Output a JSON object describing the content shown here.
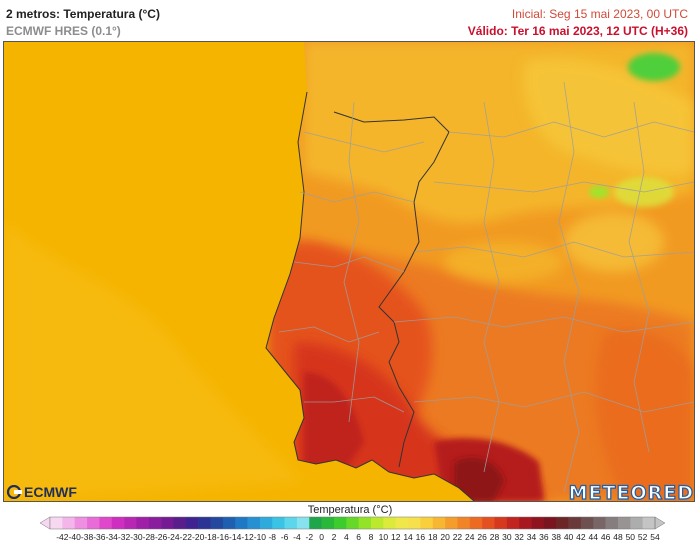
{
  "header": {
    "title": "2 metros: Temperatura (°C)",
    "model": "ECMWF HRES (0.1°)",
    "initial": "Inicial: Seg 15 mai 2023, 00 UTC",
    "valid": "Válido: Ter 16 mai 2023, 12 UTC (H+36)"
  },
  "logos": {
    "left": "ECMWF",
    "right": "METEORED"
  },
  "legend": {
    "title": "Temperatura (°C)",
    "labels": [
      "-42",
      "-40",
      "-38",
      "-36",
      "-34",
      "-32",
      "-30",
      "-28",
      "-26",
      "-24",
      "-22",
      "-20",
      "-18",
      "-16",
      "-14",
      "-12",
      "-10",
      "-8",
      "-6",
      "-4",
      "-2",
      "0",
      "2",
      "4",
      "6",
      "8",
      "10",
      "12",
      "14",
      "16",
      "18",
      "20",
      "22",
      "24",
      "26",
      "28",
      "30",
      "32",
      "34",
      "36",
      "38",
      "40",
      "42",
      "44",
      "46",
      "48",
      "50",
      "52",
      "54"
    ],
    "colors": [
      "#f7d8f0",
      "#f3b5ea",
      "#ee8fe1",
      "#e96bd7",
      "#e048cc",
      "#cf2fc0",
      "#b827b4",
      "#a01fa8",
      "#8a1d9e",
      "#741b94",
      "#5a1d8c",
      "#3f2390",
      "#2b3494",
      "#24489e",
      "#1e5fb0",
      "#1f78c4",
      "#2690d2",
      "#2eaadd",
      "#3bc3e6",
      "#5bd6ea",
      "#86e2ee",
      "#1fa64a",
      "#2ab83a",
      "#3ccc2e",
      "#66d928",
      "#93e428",
      "#bce82e",
      "#dcea3c",
      "#f0e84a",
      "#f7e04e",
      "#f9cf3e",
      "#f8b733",
      "#f59d2c",
      "#f18426",
      "#ec6a22",
      "#e4501f",
      "#d6381e",
      "#c2241f",
      "#a8181f",
      "#8f1420",
      "#7a1520",
      "#6d2626",
      "#6a3a3a",
      "#6e5050",
      "#786666",
      "#867e7e",
      "#989494",
      "#adadad",
      "#c4c4c4"
    ]
  },
  "map": {
    "region": "Peninsula Ibérica",
    "palette": {
      "ocean": "#f5b400",
      "warm": "#f08a1c",
      "hot": "#e5521f",
      "hotter": "#d6361c",
      "hottest": "#b51a1a",
      "extreme": "#8e1616",
      "cool_land": "#f4c22a",
      "green": "#4fcf3a",
      "border": "#333333",
      "admin": "#9e9e9e"
    }
  }
}
